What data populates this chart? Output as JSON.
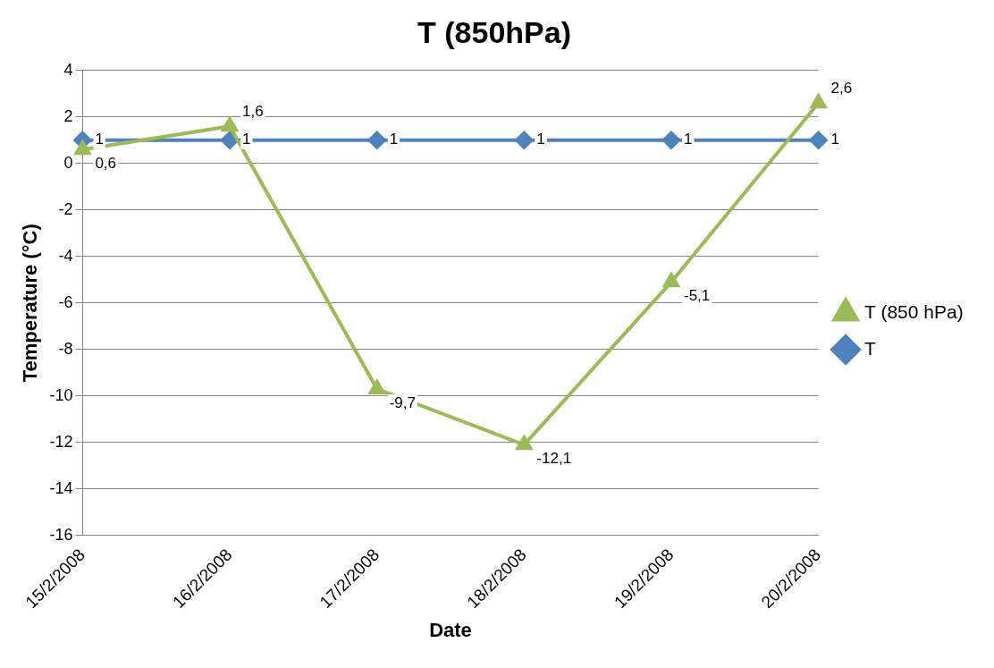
{
  "chart_data": {
    "type": "line",
    "title": "T (850hPa)",
    "xlabel": "Date",
    "ylabel": "Temperature (°C)",
    "categories": [
      "15/2/2008",
      "16/2/2008",
      "17/2/2008",
      "18/2/2008",
      "19/2/2008",
      "20/2/2008"
    ],
    "series": [
      {
        "name": "T (850 hPa)",
        "color": "#9bbb59",
        "marker": "triangle",
        "values": [
          0.6,
          1.6,
          -9.7,
          -12.1,
          -5.1,
          2.6
        ],
        "value_labels": [
          "0,6",
          "1,6",
          "-9,7",
          "-12,1",
          "-5,1",
          "2,6"
        ]
      },
      {
        "name": "T",
        "color": "#4f81bd",
        "marker": "diamond",
        "values": [
          1,
          1,
          1,
          1,
          1,
          1
        ],
        "value_labels": [
          "1",
          "1",
          "1",
          "1",
          "1",
          "1"
        ]
      }
    ],
    "ylim": [
      -16,
      4
    ],
    "yticks": [
      -16,
      -14,
      -12,
      -10,
      -8,
      -6,
      -4,
      -2,
      0,
      2,
      4
    ],
    "grid": "y",
    "legend": "right",
    "line_style": "solid"
  }
}
